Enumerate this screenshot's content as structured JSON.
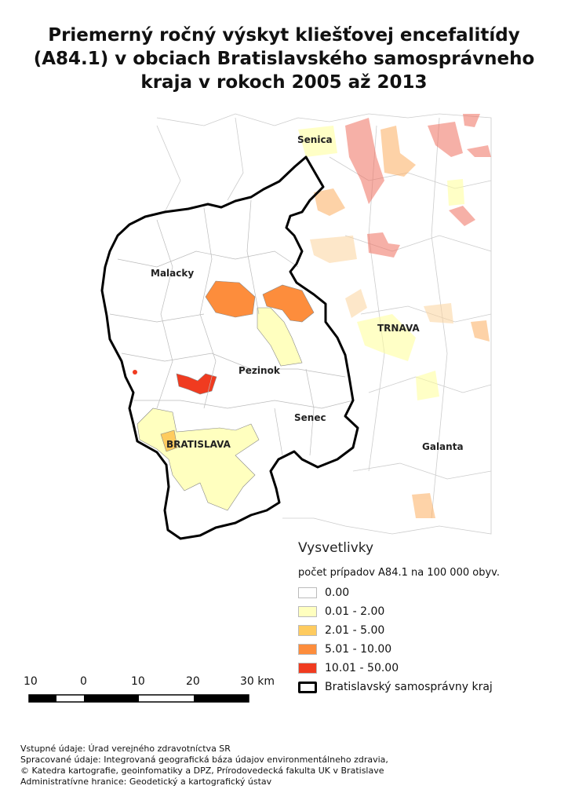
{
  "title": [
    "Priemerný ročný výskyt kliešťovej encefalitídy",
    "(A84.1) v obciach Bratislavského samosprávneho",
    "kraja v rokoch 2005 až 2013"
  ],
  "map_labels": {
    "senica": "Senica",
    "malacky": "Malacky",
    "trnava": "TRNAVA",
    "pezinok": "Pezinok",
    "senec": "Senec",
    "bratislava": "BRATISLAVA",
    "galanta": "Galanta"
  },
  "legend": {
    "title": "Vysvetlivky",
    "subtitle": "počet prípadov A84.1 na 100 000 obyv.",
    "classes": [
      {
        "label": "0.00",
        "color": "#ffffff"
      },
      {
        "label": "0.01 - 2.00",
        "color": "#ffffbf"
      },
      {
        "label": "2.01 - 5.00",
        "color": "#fecb5f"
      },
      {
        "label": "5.01 - 10.00",
        "color": "#fd8d3c"
      },
      {
        "label": "10.01 - 50.00",
        "color": "#f03b20"
      }
    ],
    "boundary_label": "Bratislavský samosprávny kraj"
  },
  "scale_bar": {
    "labels": [
      "10",
      "0",
      "10",
      "20",
      "30 km"
    ]
  },
  "footer": [
    "Vstupné údaje: Úrad verejného zdravotníctva SR",
    "Spracované údaje: Integrovaná geografická báza údajov environmentálneho zdravia,",
    "© Katedra kartografie, geoinfomatiky a DPZ, Prírodovedecká fakulta UK v Bratislave",
    "Administratívne hranice: Geodetický a kartografický ústav"
  ]
}
